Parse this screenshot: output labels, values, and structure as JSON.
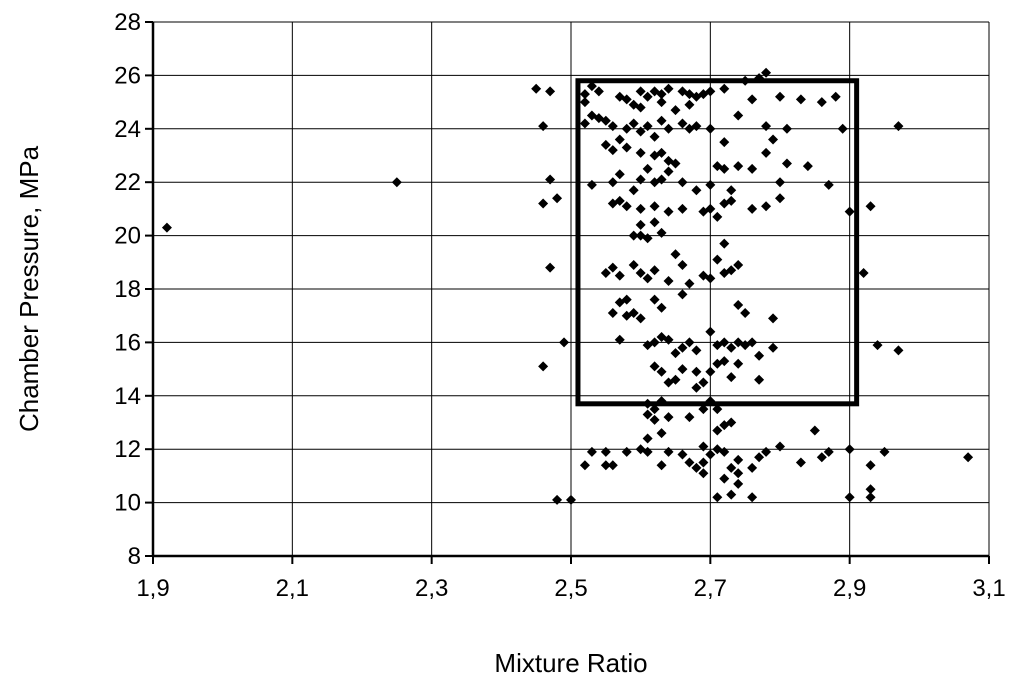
{
  "chart_data": {
    "type": "scatter",
    "xlabel": "Mixture Ratio",
    "ylabel": "Chamber Pressure, MPa",
    "xlim": [
      1.9,
      3.1
    ],
    "ylim": [
      8,
      28
    ],
    "x_ticks": [
      "1,9",
      "2,1",
      "2,3",
      "2,5",
      "2,7",
      "2,9",
      "3,1"
    ],
    "y_ticks": [
      "8",
      "10",
      "12",
      "14",
      "16",
      "18",
      "20",
      "22",
      "24",
      "26",
      "28"
    ],
    "grid": true,
    "marker": "diamond",
    "box_region": {
      "x": [
        2.51,
        2.91
      ],
      "y": [
        13.7,
        25.8
      ]
    },
    "points": [
      [
        1.92,
        20.3
      ],
      [
        2.25,
        22.0
      ],
      [
        2.45,
        25.5
      ],
      [
        2.47,
        25.4
      ],
      [
        2.46,
        24.1
      ],
      [
        2.47,
        22.1
      ],
      [
        2.48,
        21.4
      ],
      [
        2.46,
        21.2
      ],
      [
        2.47,
        18.8
      ],
      [
        2.49,
        16.0
      ],
      [
        2.46,
        15.1
      ],
      [
        2.48,
        10.1
      ],
      [
        2.5,
        10.1
      ],
      [
        3.07,
        11.7
      ],
      [
        2.52,
        25.3
      ],
      [
        2.53,
        25.6
      ],
      [
        2.52,
        25.0
      ],
      [
        2.54,
        25.4
      ],
      [
        2.53,
        24.5
      ],
      [
        2.55,
        24.3
      ],
      [
        2.52,
        24.2
      ],
      [
        2.56,
        24.1
      ],
      [
        2.54,
        24.4
      ],
      [
        2.57,
        25.2
      ],
      [
        2.58,
        25.1
      ],
      [
        2.6,
        25.4
      ],
      [
        2.61,
        25.2
      ],
      [
        2.62,
        25.4
      ],
      [
        2.64,
        25.5
      ],
      [
        2.63,
        25.3
      ],
      [
        2.66,
        25.4
      ],
      [
        2.67,
        25.3
      ],
      [
        2.68,
        25.2
      ],
      [
        2.69,
        25.3
      ],
      [
        2.7,
        25.4
      ],
      [
        2.72,
        25.5
      ],
      [
        2.59,
        24.9
      ],
      [
        2.6,
        24.8
      ],
      [
        2.63,
        25.0
      ],
      [
        2.65,
        24.7
      ],
      [
        2.67,
        24.9
      ],
      [
        2.55,
        23.4
      ],
      [
        2.56,
        23.2
      ],
      [
        2.57,
        23.6
      ],
      [
        2.58,
        24.0
      ],
      [
        2.59,
        24.2
      ],
      [
        2.6,
        23.9
      ],
      [
        2.61,
        24.1
      ],
      [
        2.62,
        23.7
      ],
      [
        2.63,
        24.3
      ],
      [
        2.64,
        24.0
      ],
      [
        2.66,
        24.2
      ],
      [
        2.67,
        24.0
      ],
      [
        2.68,
        24.1
      ],
      [
        2.7,
        24.0
      ],
      [
        2.72,
        23.5
      ],
      [
        2.58,
        23.3
      ],
      [
        2.6,
        23.1
      ],
      [
        2.62,
        23.0
      ],
      [
        2.64,
        22.8
      ],
      [
        2.65,
        22.7
      ],
      [
        2.63,
        23.1
      ],
      [
        2.53,
        21.9
      ],
      [
        2.56,
        22.0
      ],
      [
        2.57,
        22.3
      ],
      [
        2.59,
        21.7
      ],
      [
        2.6,
        22.1
      ],
      [
        2.61,
        22.5
      ],
      [
        2.62,
        22.0
      ],
      [
        2.63,
        22.1
      ],
      [
        2.64,
        22.4
      ],
      [
        2.66,
        22.0
      ],
      [
        2.68,
        21.7
      ],
      [
        2.7,
        21.9
      ],
      [
        2.71,
        22.6
      ],
      [
        2.72,
        22.5
      ],
      [
        2.73,
        21.7
      ],
      [
        2.74,
        22.6
      ],
      [
        2.76,
        22.5
      ],
      [
        2.78,
        23.1
      ],
      [
        2.79,
        23.6
      ],
      [
        2.8,
        22.0
      ],
      [
        2.81,
        22.7
      ],
      [
        2.84,
        22.6
      ],
      [
        2.56,
        21.2
      ],
      [
        2.57,
        21.3
      ],
      [
        2.58,
        21.1
      ],
      [
        2.6,
        21.0
      ],
      [
        2.62,
        21.1
      ],
      [
        2.64,
        20.9
      ],
      [
        2.66,
        21.0
      ],
      [
        2.69,
        20.9
      ],
      [
        2.7,
        21.0
      ],
      [
        2.71,
        20.7
      ],
      [
        2.72,
        21.2
      ],
      [
        2.73,
        21.3
      ],
      [
        2.76,
        21.0
      ],
      [
        2.78,
        21.1
      ],
      [
        2.8,
        21.4
      ],
      [
        2.59,
        20.0
      ],
      [
        2.6,
        20.0
      ],
      [
        2.61,
        19.9
      ],
      [
        2.62,
        20.5
      ],
      [
        2.6,
        20.4
      ],
      [
        2.63,
        20.1
      ],
      [
        2.55,
        18.6
      ],
      [
        2.56,
        18.8
      ],
      [
        2.57,
        18.5
      ],
      [
        2.59,
        18.9
      ],
      [
        2.6,
        18.6
      ],
      [
        2.61,
        18.4
      ],
      [
        2.62,
        18.7
      ],
      [
        2.64,
        18.3
      ],
      [
        2.65,
        19.3
      ],
      [
        2.66,
        18.9
      ],
      [
        2.67,
        18.2
      ],
      [
        2.69,
        18.5
      ],
      [
        2.7,
        18.4
      ],
      [
        2.71,
        19.1
      ],
      [
        2.72,
        18.6
      ],
      [
        2.73,
        18.7
      ],
      [
        2.74,
        18.9
      ],
      [
        2.72,
        19.7
      ],
      [
        2.74,
        17.4
      ],
      [
        2.75,
        17.1
      ],
      [
        2.57,
        17.5
      ],
      [
        2.58,
        17.6
      ],
      [
        2.56,
        17.1
      ],
      [
        2.58,
        17.0
      ],
      [
        2.59,
        17.1
      ],
      [
        2.6,
        16.9
      ],
      [
        2.62,
        17.6
      ],
      [
        2.63,
        17.3
      ],
      [
        2.66,
        17.8
      ],
      [
        2.79,
        16.9
      ],
      [
        2.57,
        16.1
      ],
      [
        2.61,
        15.9
      ],
      [
        2.62,
        16.0
      ],
      [
        2.63,
        16.2
      ],
      [
        2.64,
        16.1
      ],
      [
        2.65,
        15.6
      ],
      [
        2.66,
        15.8
      ],
      [
        2.67,
        16.0
      ],
      [
        2.68,
        15.7
      ],
      [
        2.7,
        16.4
      ],
      [
        2.71,
        15.9
      ],
      [
        2.72,
        16.0
      ],
      [
        2.73,
        15.8
      ],
      [
        2.74,
        16.0
      ],
      [
        2.75,
        15.9
      ],
      [
        2.76,
        16.0
      ],
      [
        2.77,
        15.5
      ],
      [
        2.79,
        15.8
      ],
      [
        2.72,
        15.3
      ],
      [
        2.73,
        14.7
      ],
      [
        2.74,
        15.2
      ],
      [
        2.77,
        14.6
      ],
      [
        2.62,
        15.1
      ],
      [
        2.63,
        14.9
      ],
      [
        2.64,
        14.5
      ],
      [
        2.65,
        14.6
      ],
      [
        2.66,
        15.0
      ],
      [
        2.68,
        14.9
      ],
      [
        2.69,
        14.5
      ],
      [
        2.71,
        15.2
      ],
      [
        2.7,
        14.9
      ],
      [
        2.68,
        14.3
      ],
      [
        2.61,
        13.7
      ],
      [
        2.62,
        13.5
      ],
      [
        2.63,
        13.8
      ],
      [
        2.64,
        13.2
      ],
      [
        2.67,
        13.2
      ],
      [
        2.69,
        13.5
      ],
      [
        2.7,
        13.8
      ],
      [
        2.71,
        13.5
      ],
      [
        2.72,
        12.9
      ],
      [
        2.73,
        13.0
      ],
      [
        2.71,
        12.7
      ],
      [
        2.61,
        13.3
      ],
      [
        2.62,
        13.1
      ],
      [
        2.53,
        11.9
      ],
      [
        2.55,
        11.9
      ],
      [
        2.56,
        11.4
      ],
      [
        2.58,
        11.9
      ],
      [
        2.6,
        12.0
      ],
      [
        2.61,
        11.9
      ],
      [
        2.63,
        11.4
      ],
      [
        2.64,
        11.9
      ],
      [
        2.66,
        11.8
      ],
      [
        2.67,
        11.5
      ],
      [
        2.68,
        11.3
      ],
      [
        2.69,
        11.5
      ],
      [
        2.7,
        11.8
      ],
      [
        2.71,
        12.0
      ],
      [
        2.72,
        11.9
      ],
      [
        2.73,
        11.3
      ],
      [
        2.74,
        11.6
      ],
      [
        2.76,
        11.3
      ],
      [
        2.77,
        11.7
      ],
      [
        2.78,
        11.9
      ],
      [
        2.8,
        12.1
      ],
      [
        2.83,
        11.5
      ],
      [
        2.86,
        11.7
      ],
      [
        2.87,
        11.9
      ],
      [
        2.9,
        12.0
      ],
      [
        2.93,
        11.4
      ],
      [
        2.95,
        11.9
      ],
      [
        2.61,
        12.4
      ],
      [
        2.63,
        12.6
      ],
      [
        2.69,
        12.1
      ],
      [
        2.85,
        12.7
      ],
      [
        2.52,
        11.4
      ],
      [
        2.55,
        11.4
      ],
      [
        2.69,
        11.1
      ],
      [
        2.72,
        10.9
      ],
      [
        2.74,
        11.1
      ],
      [
        2.71,
        10.2
      ],
      [
        2.73,
        10.3
      ],
      [
        2.76,
        10.2
      ],
      [
        2.9,
        10.2
      ],
      [
        2.93,
        10.2
      ],
      [
        2.74,
        10.7
      ],
      [
        2.93,
        10.5
      ],
      [
        2.76,
        25.1
      ],
      [
        2.77,
        25.9
      ],
      [
        2.78,
        26.1
      ],
      [
        2.75,
        25.8
      ],
      [
        2.8,
        25.2
      ],
      [
        2.83,
        25.1
      ],
      [
        2.86,
        25.0
      ],
      [
        2.88,
        25.2
      ],
      [
        2.74,
        24.5
      ],
      [
        2.78,
        24.1
      ],
      [
        2.81,
        24.0
      ],
      [
        2.87,
        21.9
      ],
      [
        2.89,
        24.0
      ],
      [
        2.93,
        21.1
      ],
      [
        2.9,
        20.9
      ],
      [
        2.92,
        18.6
      ],
      [
        2.94,
        15.9
      ],
      [
        2.97,
        24.1
      ],
      [
        2.97,
        15.7
      ]
    ]
  }
}
